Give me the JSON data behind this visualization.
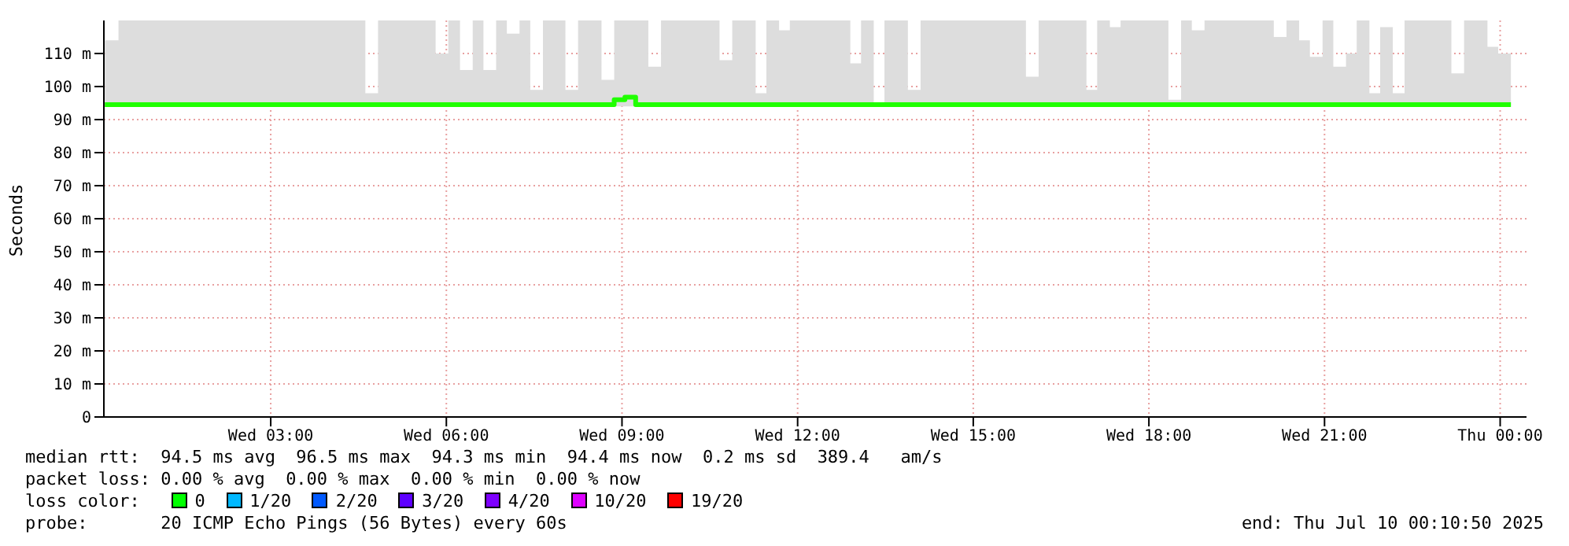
{
  "chart_data": {
    "type": "step",
    "ylabel": "Seconds",
    "xlim": [
      "2025-07-09T00:09",
      "2025-07-10T00:27"
    ],
    "xticks": [
      {
        "value": "2025-07-09T03:00",
        "label": "Wed 03:00"
      },
      {
        "value": "2025-07-09T06:00",
        "label": "Wed 06:00"
      },
      {
        "value": "2025-07-09T09:00",
        "label": "Wed 09:00"
      },
      {
        "value": "2025-07-09T12:00",
        "label": "Wed 12:00"
      },
      {
        "value": "2025-07-09T15:00",
        "label": "Wed 15:00"
      },
      {
        "value": "2025-07-09T18:00",
        "label": "Wed 18:00"
      },
      {
        "value": "2025-07-09T21:00",
        "label": "Wed 21:00"
      },
      {
        "value": "2025-07-10T00:00",
        "label": "Thu 00:00"
      }
    ],
    "ylim": [
      0,
      120
    ],
    "yticks": [
      0,
      {
        "value": 10,
        "label": "10 m"
      },
      {
        "value": 20,
        "label": "20 m"
      },
      {
        "value": 30,
        "label": "30 m"
      },
      {
        "value": 40,
        "label": "40 m"
      },
      {
        "value": 50,
        "label": "50 m"
      },
      {
        "value": 60,
        "label": "60 m"
      },
      {
        "value": 70,
        "label": "70 m"
      },
      {
        "value": 80,
        "label": "80 m"
      },
      {
        "value": 90,
        "label": "90 m"
      },
      {
        "value": 100,
        "label": "100 m"
      },
      {
        "value": 110,
        "label": "110 m"
      }
    ],
    "grid": true,
    "legend": false,
    "marker": "none",
    "x": [
      "2025-07-09T00:10",
      "2025-07-09T00:24",
      "2025-07-09T04:37",
      "2025-07-09T04:50",
      "2025-07-09T05:49",
      "2025-07-09T06:02",
      "2025-07-09T06:14",
      "2025-07-09T06:27",
      "2025-07-09T06:38",
      "2025-07-09T06:51",
      "2025-07-09T07:02",
      "2025-07-09T07:15",
      "2025-07-09T07:26",
      "2025-07-09T07:39",
      "2025-07-09T08:02",
      "2025-07-09T08:15",
      "2025-07-09T08:39",
      "2025-07-09T08:52",
      "2025-07-09T09:03",
      "2025-07-09T09:14",
      "2025-07-09T09:27",
      "2025-07-09T09:40",
      "2025-07-09T10:40",
      "2025-07-09T10:53",
      "2025-07-09T11:17",
      "2025-07-09T11:28",
      "2025-07-09T11:41",
      "2025-07-09T11:52",
      "2025-07-09T12:54",
      "2025-07-09T13:05",
      "2025-07-09T13:18",
      "2025-07-09T13:29",
      "2025-07-09T13:53",
      "2025-07-09T14:06",
      "2025-07-09T15:54",
      "2025-07-09T16:07",
      "2025-07-09T16:56",
      "2025-07-09T17:07",
      "2025-07-09T17:20",
      "2025-07-09T17:31",
      "2025-07-09T18:20",
      "2025-07-09T18:33",
      "2025-07-09T18:44",
      "2025-07-09T18:57",
      "2025-07-09T20:08",
      "2025-07-09T20:21",
      "2025-07-09T20:34",
      "2025-07-09T20:45",
      "2025-07-09T20:58",
      "2025-07-09T21:09",
      "2025-07-09T21:22",
      "2025-07-09T21:33",
      "2025-07-09T21:46",
      "2025-07-09T21:57",
      "2025-07-09T22:10",
      "2025-07-09T22:22",
      "2025-07-09T23:10",
      "2025-07-09T23:23",
      "2025-07-09T23:47",
      "2025-07-09T23:58",
      "2025-07-10T00:11"
    ],
    "series": [
      {
        "color": "#20ff00",
        "values": [
          94.5,
          94.5,
          94.5,
          94.5,
          94.5,
          94.5,
          94.5,
          94.5,
          94.5,
          94.5,
          94.5,
          94.5,
          94.5,
          94.5,
          94.5,
          94.5,
          94.5,
          96,
          96.8,
          94.5,
          94.5,
          94.5,
          94.5,
          94.5,
          94.5,
          94.5,
          94.5,
          94.5,
          94.5,
          94.5,
          94.5,
          94.5,
          94.5,
          94.5,
          94.5,
          94.5,
          94.5,
          94.5,
          94.5,
          94.5,
          94.5,
          94.5,
          94.5,
          94.5,
          94.5,
          94.5,
          94.5,
          94.5,
          94.5,
          94.5,
          94.5,
          94.5,
          94.5,
          94.5,
          94.5,
          94.5,
          94.5,
          94.5,
          94.5,
          94.5,
          94.5
        ],
        "lower": [
          94,
          94,
          94,
          94,
          94,
          94,
          94,
          94,
          94,
          94,
          94,
          94,
          94,
          94,
          94,
          94,
          94,
          94,
          94,
          94,
          94,
          94,
          94,
          94,
          94,
          94,
          94,
          94,
          94,
          94,
          94,
          94,
          94,
          94,
          94,
          94,
          94,
          94,
          94,
          94,
          94,
          94,
          94,
          94,
          94,
          94,
          94,
          94,
          94,
          94,
          94,
          94,
          94,
          94,
          94,
          94,
          94,
          94,
          94,
          94,
          94
        ],
        "upper": [
          114,
          120,
          98,
          120,
          110,
          120,
          105,
          120,
          105,
          120,
          116,
          120,
          99,
          120,
          99,
          120,
          102,
          120,
          120,
          120,
          106,
          120,
          108,
          120,
          98,
          120,
          117,
          120,
          107,
          120,
          95,
          120,
          99,
          120,
          103,
          120,
          99,
          120,
          118,
          120,
          96,
          120,
          117,
          120,
          115,
          120,
          114,
          109,
          120,
          106,
          110,
          120,
          98,
          118,
          98,
          120,
          104,
          120,
          112,
          110,
          110
        ]
      }
    ],
    "annotations": [
      "median rtt:  94.5 ms avg  96.5 ms max  94.3 ms min  94.4 ms now  0.2 ms sd  389.4   am/s",
      "packet loss: 0.00 % avg  0.00 % max  0.00 % min  0.00 % now",
      "loss color:",
      "0",
      "1/20",
      "2/20",
      "3/20",
      "4/20",
      "10/20",
      "19/20",
      "probe:       20 ICMP Echo Pings (56 Bytes) every 60s",
      "end: Thu Jul 10 00:10:50 2025"
    ]
  }
}
